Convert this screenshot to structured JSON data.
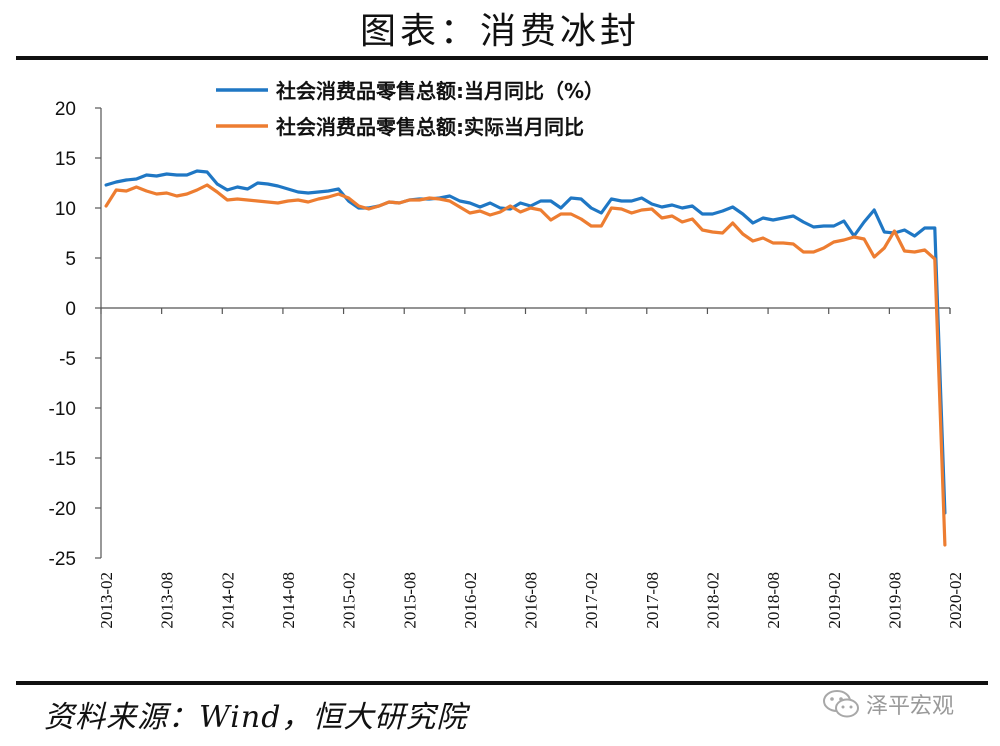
{
  "title": "图表：消费冰封",
  "source": "资料来源：Wind，恒大研究院",
  "watermark": "泽平宏观",
  "chart_data": {
    "type": "line",
    "ylim": [
      -25,
      20
    ],
    "yticks": [
      20,
      15,
      10,
      5,
      0,
      -5,
      -10,
      -15,
      -20,
      -25
    ],
    "x_tick_labels": [
      "2013-02",
      "2013-08",
      "2014-02",
      "2014-08",
      "2015-02",
      "2015-08",
      "2016-02",
      "2016-08",
      "2017-02",
      "2017-08",
      "2018-02",
      "2018-08",
      "2019-02",
      "2019-08",
      "2020-02"
    ],
    "series": [
      {
        "name": "社会消费品零售总额:当月同比（%）",
        "color": "#1F77C4",
        "values": [
          12.3,
          12.6,
          12.8,
          12.9,
          13.3,
          13.2,
          13.4,
          13.3,
          13.3,
          13.7,
          13.6,
          12.4,
          11.8,
          12.1,
          11.9,
          12.5,
          12.4,
          12.2,
          11.9,
          11.6,
          11.5,
          11.6,
          11.7,
          11.9,
          10.7,
          10.0,
          10.0,
          10.2,
          10.6,
          10.5,
          10.8,
          10.9,
          10.9,
          11.0,
          11.2,
          10.7,
          10.5,
          10.1,
          10.5,
          10.0,
          9.9,
          10.5,
          10.2,
          10.7,
          10.7,
          10.0,
          11.0,
          10.9,
          10.0,
          9.5,
          10.9,
          10.7,
          10.7,
          11.0,
          10.4,
          10.1,
          10.3,
          10.0,
          10.2,
          9.4,
          9.4,
          9.7,
          10.1,
          9.4,
          8.5,
          9.0,
          8.8,
          9.0,
          9.2,
          8.6,
          8.1,
          8.2,
          8.2,
          8.7,
          7.2,
          8.6,
          9.8,
          7.6,
          7.5,
          7.8,
          7.2,
          8.0,
          8.0,
          -20.5
        ]
      },
      {
        "name": "社会消费品零售总额:实际当月同比",
        "color": "#ED7D31",
        "values": [
          10.2,
          11.8,
          11.7,
          12.1,
          11.7,
          11.4,
          11.5,
          11.2,
          11.4,
          11.8,
          12.3,
          11.6,
          10.8,
          10.9,
          10.8,
          10.7,
          10.6,
          10.5,
          10.7,
          10.8,
          10.6,
          10.9,
          11.1,
          11.4,
          11.0,
          10.2,
          9.9,
          10.2,
          10.6,
          10.5,
          10.8,
          10.8,
          11.0,
          10.9,
          10.7,
          10.1,
          9.5,
          9.7,
          9.3,
          9.6,
          10.2,
          9.6,
          10.0,
          9.8,
          8.8,
          9.4,
          9.4,
          8.9,
          8.2,
          8.2,
          10.0,
          9.9,
          9.5,
          9.8,
          9.9,
          9.0,
          9.2,
          8.6,
          8.9,
          7.8,
          7.6,
          7.5,
          8.5,
          7.4,
          6.7,
          7.0,
          6.5,
          6.5,
          6.4,
          5.6,
          5.6,
          6.0,
          6.6,
          6.8,
          7.1,
          6.9,
          5.1,
          6.0,
          7.7,
          5.7,
          5.6,
          5.8,
          4.9,
          -23.7
        ]
      }
    ]
  }
}
